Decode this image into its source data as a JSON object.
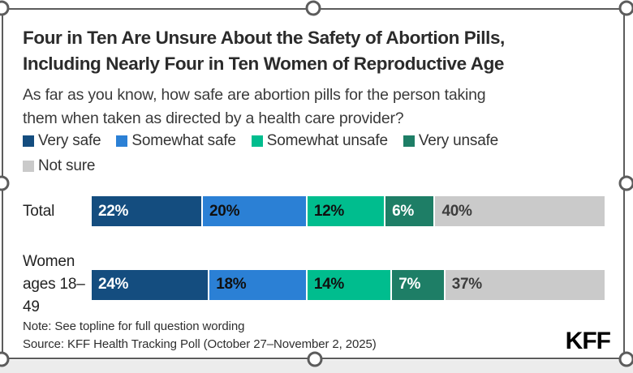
{
  "header": {
    "title_line1": "Four in Ten Are Unsure About the Safety of Abortion Pills,",
    "title_line2": "Including Nearly Four in Ten Women of Reproductive Age",
    "subtitle_line1": "As far as you know, how safe are abortion pills for the person taking",
    "subtitle_line2": "them when taken as directed by a health care provider?"
  },
  "legend": {
    "rows": [
      [
        "Very safe",
        "Somewhat safe",
        "Somewhat unsafe",
        "Very unsafe"
      ],
      [
        "Not sure"
      ]
    ]
  },
  "chart_data": {
    "type": "bar",
    "stacked": true,
    "orientation": "horizontal",
    "unit": "%",
    "xlim": [
      0,
      100
    ],
    "legend_position": "top",
    "value_labels": "inside-left",
    "categories": [
      "Total",
      "Women ages 18–49"
    ],
    "series": [
      {
        "name": "Very safe",
        "color": "#144d7f",
        "label_color": "#ffffff",
        "values": [
          22,
          24
        ]
      },
      {
        "name": "Somewhat safe",
        "color": "#2b80d5",
        "label_color": "#101010",
        "values": [
          20,
          18
        ]
      },
      {
        "name": "Somewhat unsafe",
        "color": "#00bd8e",
        "label_color": "#101010",
        "values": [
          12,
          14
        ]
      },
      {
        "name": "Very unsafe",
        "color": "#1e7e66",
        "label_color": "#ffffff",
        "values": [
          6,
          7
        ]
      },
      {
        "name": "Not sure",
        "color": "#cacaca",
        "label_color": "#3d3d3d",
        "values": [
          40,
          37
        ]
      }
    ]
  },
  "footer": {
    "note": "Note: See topline for full question wording",
    "source": "Source: KFF Health Tracking Poll (October 27–November 2, 2025)",
    "logo": "KFF"
  },
  "colors": {
    "frame": "#5c5c5c",
    "card_bg": "#ffffff",
    "outside_bg": "#ececec",
    "title_text": "#2b2b2b"
  }
}
